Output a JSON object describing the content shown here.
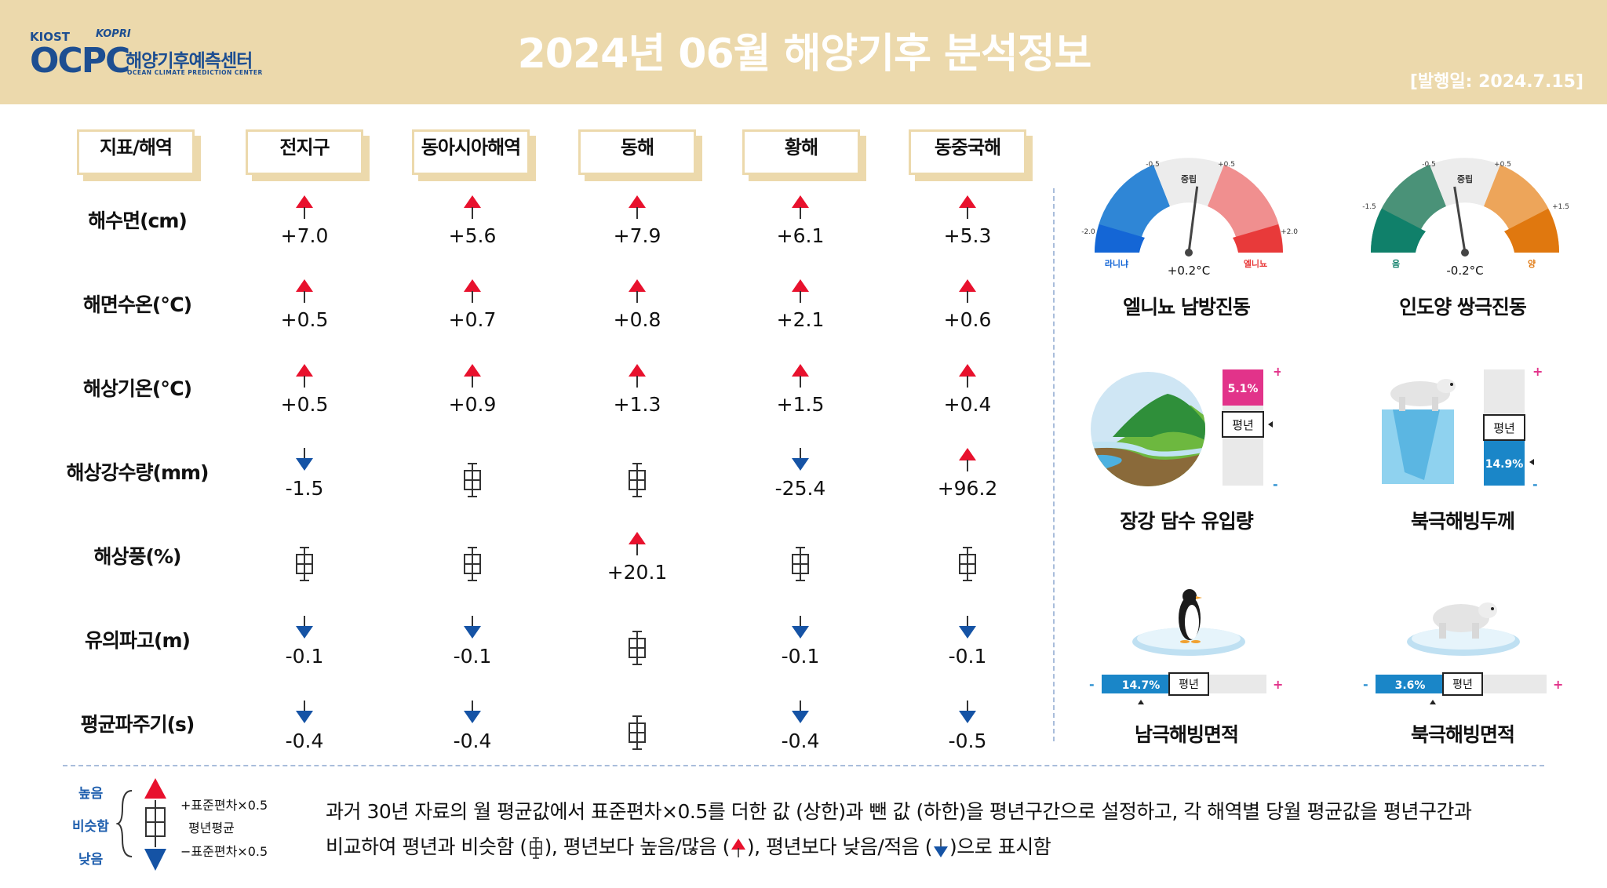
{
  "header": {
    "logo": {
      "kiost": "KIOST",
      "kopri": "KOPRI",
      "ocpc": "OCPC",
      "korean": "해양기후예측센터",
      "english": "OCEAN CLIMATE PREDICTION CENTER"
    },
    "title": "2024년 06월 해양기후 분석정보",
    "publish_date": "[발행일: 2024.7.15]"
  },
  "table": {
    "corner_header": "지표/해역",
    "regions": [
      "전지구",
      "동아시아해역",
      "동해",
      "황해",
      "동중국해"
    ],
    "rows": [
      {
        "label": "해수면(cm)",
        "cells": [
          {
            "status": "up",
            "value": "+7.0"
          },
          {
            "status": "up",
            "value": "+5.6"
          },
          {
            "status": "up",
            "value": "+7.9"
          },
          {
            "status": "up",
            "value": "+6.1"
          },
          {
            "status": "up",
            "value": "+5.3"
          }
        ]
      },
      {
        "label": "해면수온(℃)",
        "cells": [
          {
            "status": "up",
            "value": "+0.5"
          },
          {
            "status": "up",
            "value": "+0.7"
          },
          {
            "status": "up",
            "value": "+0.8"
          },
          {
            "status": "up",
            "value": "+2.1"
          },
          {
            "status": "up",
            "value": "+0.6"
          }
        ]
      },
      {
        "label": "해상기온(℃)",
        "cells": [
          {
            "status": "up",
            "value": "+0.5"
          },
          {
            "status": "up",
            "value": "+0.9"
          },
          {
            "status": "up",
            "value": "+1.3"
          },
          {
            "status": "up",
            "value": "+1.5"
          },
          {
            "status": "up",
            "value": "+0.4"
          }
        ]
      },
      {
        "label": "해상강수량(mm)",
        "cells": [
          {
            "status": "down",
            "value": "-1.5"
          },
          {
            "status": "normal",
            "value": ""
          },
          {
            "status": "normal",
            "value": ""
          },
          {
            "status": "down",
            "value": "-25.4"
          },
          {
            "status": "up",
            "value": "+96.2"
          }
        ]
      },
      {
        "label": "해상풍(%)",
        "cells": [
          {
            "status": "normal",
            "value": ""
          },
          {
            "status": "normal",
            "value": ""
          },
          {
            "status": "up",
            "value": "+20.1"
          },
          {
            "status": "normal",
            "value": ""
          },
          {
            "status": "normal",
            "value": ""
          }
        ]
      },
      {
        "label": "유의파고(m)",
        "cells": [
          {
            "status": "down",
            "value": "-0.1"
          },
          {
            "status": "down",
            "value": "-0.1"
          },
          {
            "status": "normal",
            "value": ""
          },
          {
            "status": "down",
            "value": "-0.1"
          },
          {
            "status": "down",
            "value": "-0.1"
          }
        ]
      },
      {
        "label": "평균파주기(s)",
        "cells": [
          {
            "status": "down",
            "value": "-0.4"
          },
          {
            "status": "down",
            "value": "-0.4"
          },
          {
            "status": "normal",
            "value": ""
          },
          {
            "status": "down",
            "value": "-0.4"
          },
          {
            "status": "down",
            "value": "-0.5"
          }
        ]
      }
    ]
  },
  "indices": {
    "enso": {
      "title": "엘니뇨 남방진동",
      "value_label": "+0.2°C",
      "value": 0.2,
      "center": "중립",
      "left": "라니냐",
      "right": "엘니뇨",
      "ticks": [
        "-2.0",
        "-0.5",
        "+0.5",
        "+2.0"
      ]
    },
    "iod": {
      "title": "인도양 쌍극진동",
      "value_label": "-0.2°C",
      "value": -0.2,
      "center": "중립",
      "left": "음",
      "right": "양",
      "ticks": [
        "-1.5",
        "-0.5",
        "+0.5",
        "+1.5"
      ]
    },
    "yangtze": {
      "title": "장강 담수 유입량",
      "percent": "5.1%",
      "normal_label": "평년",
      "plus": "+",
      "minus": "-"
    },
    "arctic_thickness": {
      "title": "북극해빙두께",
      "percent": "14.9%",
      "normal_label": "평년",
      "plus": "+",
      "minus": "-"
    },
    "antarctic_area": {
      "title": "남극해빙면적",
      "percent": "14.7%",
      "normal_label": "평년",
      "plus": "+",
      "minus": "-"
    },
    "arctic_area": {
      "title": "북극해빙면적",
      "percent": "3.6%",
      "normal_label": "평년",
      "plus": "+",
      "minus": "-"
    }
  },
  "legend": {
    "high": "높음",
    "similar": "비슷함",
    "low": "낮음",
    "plus_sd": "+표준편차×0.5",
    "mean": "평년평균",
    "minus_sd": "−표준편차×0.5",
    "desc_line1": "과거 30년 자료의 월 평균값에서 표준편차×0.5를 더한 값 (상한)과 뺀 값 (하한)을 평년구간으로 설정하고, 각 해역별 당월 평균값을 평년구간과",
    "desc2_a": "비교하여 평년과 비슷함 (",
    "desc2_b": "), 평년보다 높음/많음 (",
    "desc2_c": "), 평년보다 낮음/적음 (",
    "desc2_d": ")으로 표시함"
  },
  "colors": {
    "up": "#e8112d",
    "down": "#1553a5",
    "header_bg": "#ecd9ac",
    "divider": "#a9bddb"
  }
}
